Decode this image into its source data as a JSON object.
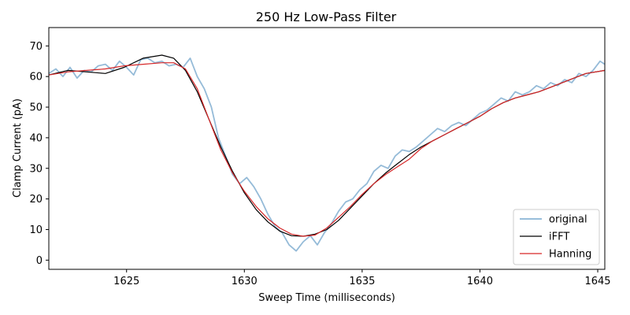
{
  "chart_data": {
    "type": "line",
    "title": "250 Hz Low-Pass Filter",
    "xlabel": "Sweep Time (milliseconds)",
    "ylabel": "Clamp Current (pA)",
    "xlim": [
      1621.7,
      1645.3
    ],
    "ylim": [
      -3,
      76
    ],
    "xticks": [
      1625,
      1630,
      1635,
      1640,
      1645
    ],
    "yticks": [
      0,
      10,
      20,
      30,
      40,
      50,
      60,
      70
    ],
    "legend_position": "lower-right",
    "series": [
      {
        "name": "original",
        "color": "#8ab4d4",
        "x": [
          1621.7,
          1622.0,
          1622.3,
          1622.6,
          1622.9,
          1623.2,
          1623.5,
          1623.8,
          1624.1,
          1624.4,
          1624.7,
          1625.0,
          1625.3,
          1625.6,
          1625.9,
          1626.2,
          1626.5,
          1626.8,
          1627.1,
          1627.4,
          1627.7,
          1628.0,
          1628.3,
          1628.6,
          1628.9,
          1629.2,
          1629.5,
          1629.8,
          1630.1,
          1630.4,
          1630.7,
          1631.0,
          1631.3,
          1631.6,
          1631.9,
          1632.2,
          1632.5,
          1632.8,
          1633.1,
          1633.4,
          1633.7,
          1634.0,
          1634.3,
          1634.6,
          1634.9,
          1635.2,
          1635.5,
          1635.8,
          1636.1,
          1636.4,
          1636.7,
          1637.0,
          1637.3,
          1637.6,
          1637.9,
          1638.2,
          1638.5,
          1638.8,
          1639.1,
          1639.4,
          1639.7,
          1640.0,
          1640.3,
          1640.6,
          1640.9,
          1641.2,
          1641.5,
          1641.8,
          1642.1,
          1642.4,
          1642.7,
          1643.0,
          1643.3,
          1643.6,
          1643.9,
          1644.2,
          1644.5,
          1644.8,
          1645.1,
          1645.3
        ],
        "values": [
          61,
          62.5,
          60,
          63,
          59.5,
          62,
          61.5,
          63.5,
          64,
          62,
          65,
          63,
          60.5,
          65.5,
          66,
          64.5,
          65,
          63.5,
          64,
          63,
          66,
          60,
          56,
          50,
          40,
          34,
          28,
          25,
          27,
          24,
          20,
          15,
          11,
          9,
          5,
          3,
          6,
          8,
          5,
          9,
          12,
          16,
          19,
          20,
          23,
          25,
          29,
          31,
          30,
          34,
          36,
          35.5,
          37,
          39,
          41,
          43,
          42,
          44,
          45,
          44,
          46,
          48,
          49,
          51,
          53,
          52,
          55,
          54,
          55,
          57,
          56,
          58,
          57,
          59,
          58,
          61,
          60,
          62,
          65,
          64
        ]
      },
      {
        "name": "iFFT",
        "color": "#000000",
        "x": [
          1621.7,
          1622.5,
          1623.3,
          1624.1,
          1624.9,
          1625.7,
          1626.5,
          1627.0,
          1627.5,
          1628.0,
          1628.5,
          1629.0,
          1629.5,
          1630.0,
          1630.5,
          1631.0,
          1631.5,
          1632.0,
          1632.5,
          1633.0,
          1633.5,
          1634.0,
          1634.5,
          1635.0,
          1635.5,
          1636.0,
          1636.5,
          1637.0,
          1637.5,
          1638.0,
          1638.5,
          1639.0,
          1639.5,
          1640.0,
          1640.5,
          1641.0,
          1641.5,
          1642.0,
          1642.5,
          1643.0,
          1643.5,
          1644.0,
          1644.5,
          1645.3
        ],
        "values": [
          60.5,
          62,
          61.5,
          61,
          63,
          66,
          67,
          66,
          62,
          55,
          46,
          37,
          29,
          22,
          16.5,
          12.5,
          9.5,
          8,
          7.8,
          8.5,
          10,
          13,
          17,
          21,
          25,
          28.5,
          31.5,
          34.5,
          37,
          39,
          41,
          43,
          45,
          47,
          49.5,
          51.5,
          53,
          54,
          55,
          56.5,
          58,
          59.5,
          61,
          62
        ]
      },
      {
        "name": "Hanning",
        "color": "#d62728",
        "x": [
          1621.7,
          1622.5,
          1623.3,
          1624.1,
          1624.9,
          1625.7,
          1626.5,
          1627.0,
          1627.5,
          1628.0,
          1628.5,
          1629.0,
          1629.5,
          1630.0,
          1630.5,
          1631.0,
          1631.5,
          1632.0,
          1632.5,
          1633.0,
          1633.5,
          1634.0,
          1634.5,
          1635.0,
          1635.5,
          1636.0,
          1636.5,
          1637.0,
          1637.5,
          1638.0,
          1638.5,
          1639.0,
          1639.5,
          1640.0,
          1640.5,
          1641.0,
          1641.5,
          1642.0,
          1642.5,
          1643.0,
          1643.5,
          1644.0,
          1644.5,
          1645.3
        ],
        "values": [
          60.5,
          61.5,
          62,
          62.5,
          63.5,
          64,
          64.5,
          64.5,
          62.5,
          56,
          46,
          36,
          28.5,
          22.5,
          17.5,
          13.5,
          10.5,
          8.5,
          7.8,
          8.2,
          10.5,
          14,
          17.5,
          21.5,
          25,
          28,
          30.5,
          33,
          36.5,
          39,
          41,
          43,
          45,
          47,
          49.5,
          51.5,
          53,
          54,
          55,
          56.5,
          58,
          59.5,
          61,
          62
        ]
      }
    ]
  }
}
